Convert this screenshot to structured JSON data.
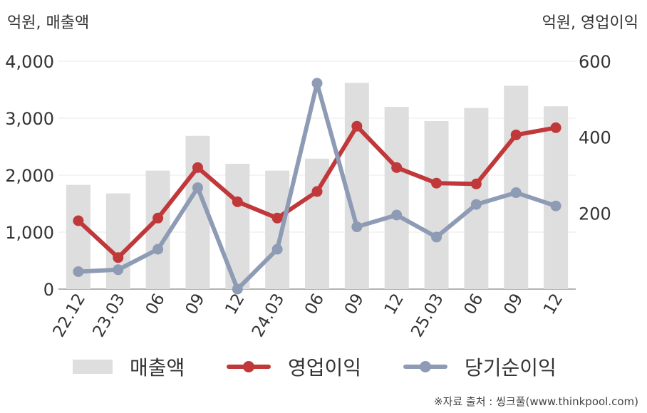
{
  "units": {
    "left": "억원, 매출액",
    "right": "억원, 영업이익"
  },
  "chart_data": {
    "type": "bar+line",
    "categories": [
      "22.12",
      "23.03",
      "06",
      "09",
      "12",
      "24.03",
      "06",
      "09",
      "12",
      "25.03",
      "06",
      "09",
      "12"
    ],
    "y_left": {
      "lim": [
        0,
        4000
      ],
      "ticks": [
        0,
        1000,
        2000,
        3000,
        4000
      ],
      "tick_labels": [
        "0",
        "1,000",
        "2,000",
        "3,000",
        "4,000"
      ]
    },
    "y_right": {
      "lim": [
        0,
        600
      ],
      "ticks": [
        200,
        400,
        600
      ],
      "tick_labels": [
        "200",
        "400",
        "600"
      ]
    },
    "grid": true,
    "legend_position": "bottom",
    "series": [
      {
        "name": "매출액",
        "type": "bar",
        "axis": "left",
        "color": "#dedede",
        "values": [
          1830,
          1680,
          2080,
          2690,
          2200,
          2080,
          2290,
          3620,
          3200,
          2950,
          3180,
          3570,
          3210
        ]
      },
      {
        "name": "영업이익",
        "type": "line",
        "axis": "right",
        "color": "#c0383a",
        "values": [
          180,
          83,
          187,
          320,
          230,
          187,
          257,
          429,
          320,
          279,
          277,
          406,
          425
        ]
      },
      {
        "name": "당기순이익",
        "type": "line",
        "axis": "right",
        "color": "#8e9bb5",
        "values": [
          46,
          51,
          105,
          267,
          0,
          105,
          542,
          164,
          195,
          137,
          223,
          254,
          219
        ]
      }
    ]
  },
  "source": "※자료 출처 : 씽크풀(www.thinkpool.com)"
}
